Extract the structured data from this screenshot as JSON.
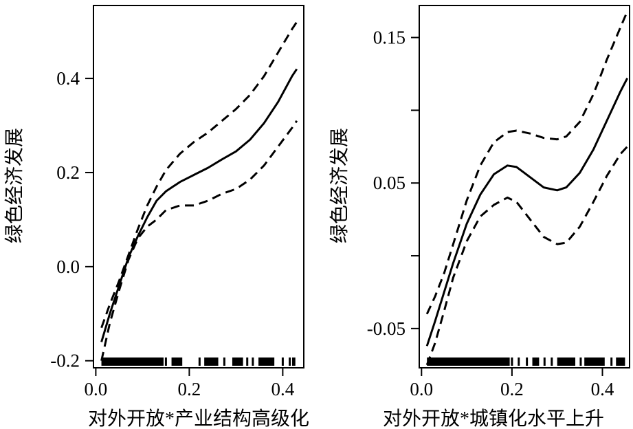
{
  "chart_data": [
    {
      "type": "line",
      "xlabel": "对外开放*产业结构高级化",
      "ylabel": "绿色经济发展",
      "xlim": [
        -0.005,
        0.445
      ],
      "ylim": [
        -0.215,
        0.555
      ],
      "xticks": [
        0.0,
        0.2,
        0.4
      ],
      "xtick_labels": [
        "0.0",
        "0.2",
        "0.4"
      ],
      "yticks": [
        -0.2,
        0.0,
        0.2,
        0.4
      ],
      "ytick_labels": [
        "-0.2",
        "0.0",
        "0.2",
        "0.4"
      ],
      "rug": {
        "segments": [
          [
            0.012,
            0.145
          ],
          [
            0.162,
            0.185
          ],
          [
            0.232,
            0.262
          ],
          [
            0.292,
            0.315
          ],
          [
            0.348,
            0.382
          ],
          [
            0.42,
            0.427
          ]
        ],
        "singles": [
          0.15,
          0.222,
          0.275,
          0.324,
          0.336,
          0.4,
          0.415
        ]
      },
      "series": [
        {
          "style": "solid",
          "x": [
            0.012,
            0.03,
            0.05,
            0.07,
            0.09,
            0.11,
            0.13,
            0.15,
            0.18,
            0.21,
            0.24,
            0.27,
            0.3,
            0.33,
            0.36,
            0.39,
            0.42,
            0.43
          ],
          "y": [
            -0.16,
            -0.1,
            -0.04,
            0.02,
            0.065,
            0.105,
            0.14,
            0.16,
            0.18,
            0.195,
            0.21,
            0.228,
            0.245,
            0.27,
            0.305,
            0.35,
            0.405,
            0.42
          ]
        },
        {
          "style": "dashed",
          "x": [
            0.012,
            0.03,
            0.05,
            0.07,
            0.09,
            0.11,
            0.13,
            0.15,
            0.18,
            0.21,
            0.24,
            0.27,
            0.3,
            0.33,
            0.36,
            0.39,
            0.42,
            0.43
          ],
          "y": [
            -0.13,
            -0.08,
            -0.03,
            0.025,
            0.08,
            0.13,
            0.17,
            0.205,
            0.24,
            0.265,
            0.285,
            0.31,
            0.335,
            0.365,
            0.405,
            0.455,
            0.505,
            0.52
          ]
        },
        {
          "style": "dashed",
          "x": [
            0.012,
            0.03,
            0.05,
            0.07,
            0.09,
            0.11,
            0.13,
            0.15,
            0.18,
            0.21,
            0.24,
            0.27,
            0.3,
            0.33,
            0.36,
            0.39,
            0.42,
            0.43
          ],
          "y": [
            -0.2,
            -0.12,
            -0.05,
            0.015,
            0.06,
            0.085,
            0.1,
            0.12,
            0.13,
            0.13,
            0.14,
            0.155,
            0.165,
            0.185,
            0.215,
            0.255,
            0.295,
            0.31
          ]
        }
      ]
    },
    {
      "type": "line",
      "xlabel": "对外开放*城镇化水平上升",
      "ylabel": "绿色经济发展",
      "xlim": [
        -0.005,
        0.46
      ],
      "ylim": [
        -0.077,
        0.172
      ],
      "xticks": [
        0.0,
        0.2,
        0.4
      ],
      "xtick_labels": [
        "0.0",
        "0.2",
        "0.4"
      ],
      "yticks": [
        -0.05,
        0.0,
        0.05,
        0.1,
        0.15
      ],
      "ytick_labels": [
        "-0.05",
        "",
        "0.05",
        "",
        "0.15"
      ],
      "rug": {
        "segments": [
          [
            0.012,
            0.195
          ],
          [
            0.245,
            0.26
          ],
          [
            0.3,
            0.34
          ],
          [
            0.36,
            0.405
          ],
          [
            0.43,
            0.45
          ]
        ],
        "singles": [
          0.2,
          0.215,
          0.233,
          0.272,
          0.288,
          0.352,
          0.42
        ]
      },
      "series": [
        {
          "style": "solid",
          "x": [
            0.012,
            0.03,
            0.05,
            0.07,
            0.1,
            0.13,
            0.16,
            0.19,
            0.21,
            0.24,
            0.27,
            0.3,
            0.32,
            0.35,
            0.38,
            0.41,
            0.44,
            0.455
          ],
          "y": [
            -0.062,
            -0.045,
            -0.025,
            -0.005,
            0.022,
            0.042,
            0.056,
            0.062,
            0.061,
            0.054,
            0.047,
            0.045,
            0.047,
            0.057,
            0.073,
            0.093,
            0.113,
            0.122
          ]
        },
        {
          "style": "dashed",
          "x": [
            0.012,
            0.03,
            0.05,
            0.07,
            0.1,
            0.13,
            0.16,
            0.19,
            0.21,
            0.24,
            0.27,
            0.3,
            0.32,
            0.35,
            0.38,
            0.41,
            0.44,
            0.455
          ],
          "y": [
            -0.04,
            -0.028,
            -0.012,
            0.008,
            0.038,
            0.062,
            0.078,
            0.085,
            0.086,
            0.084,
            0.081,
            0.08,
            0.082,
            0.092,
            0.111,
            0.135,
            0.157,
            0.168
          ]
        },
        {
          "style": "dashed",
          "x": [
            0.012,
            0.03,
            0.05,
            0.07,
            0.1,
            0.13,
            0.16,
            0.19,
            0.21,
            0.24,
            0.27,
            0.3,
            0.32,
            0.35,
            0.38,
            0.41,
            0.44,
            0.455
          ],
          "y": [
            -0.075,
            -0.06,
            -0.038,
            -0.015,
            0.01,
            0.027,
            0.035,
            0.04,
            0.037,
            0.025,
            0.013,
            0.008,
            0.009,
            0.02,
            0.037,
            0.055,
            0.07,
            0.075
          ]
        }
      ]
    }
  ]
}
